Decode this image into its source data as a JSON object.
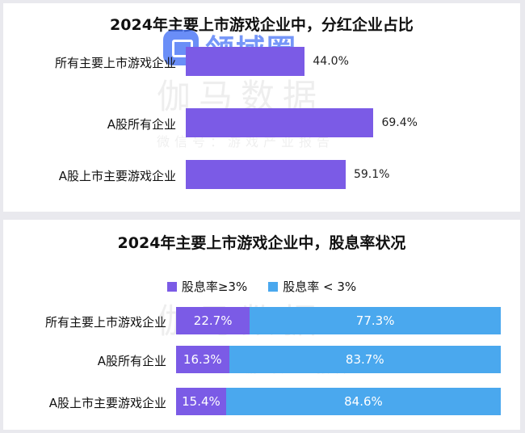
{
  "colors": {
    "purple": "#7b5be6",
    "blue": "#4aa8ee"
  },
  "chart_data": [
    {
      "type": "bar",
      "orientation": "horizontal",
      "title": "2024年主要上市游戏企业中，分红企业占比",
      "categories": [
        "所有主要上市游戏企业",
        "A股所有企业",
        "A股上市主要游戏企业"
      ],
      "values": [
        44.0,
        69.4,
        59.1
      ],
      "value_labels": [
        "44.0%",
        "69.4%",
        "59.1%"
      ],
      "xlim": [
        0,
        100
      ],
      "grid": false,
      "color": "#7b5be6"
    },
    {
      "type": "bar",
      "orientation": "horizontal",
      "stacked": true,
      "percent_stacked": true,
      "title": "2024年主要上市游戏企业中，股息率状况",
      "categories": [
        "所有主要上市游戏企业",
        "A股所有企业",
        "A股上市主要游戏企业"
      ],
      "series": [
        {
          "name": "股息率≥3%",
          "values": [
            22.7,
            16.3,
            15.4
          ],
          "labels": [
            "22.7%",
            "16.3%",
            "15.4%"
          ],
          "color": "#7b5be6"
        },
        {
          "name": "股息率 < 3%",
          "values": [
            77.3,
            83.7,
            84.6
          ],
          "labels": [
            "77.3%",
            "83.7%",
            "84.6%"
          ],
          "color": "#4aa8ee"
        }
      ],
      "legend_position": "top-center",
      "grid": false
    }
  ],
  "watermark": {
    "brand_logo": "领域圈",
    "brand_main": "伽马数据",
    "brand_sub": "微信号：游戏产业报告",
    "brand_sub2": "游戏产业报告"
  }
}
